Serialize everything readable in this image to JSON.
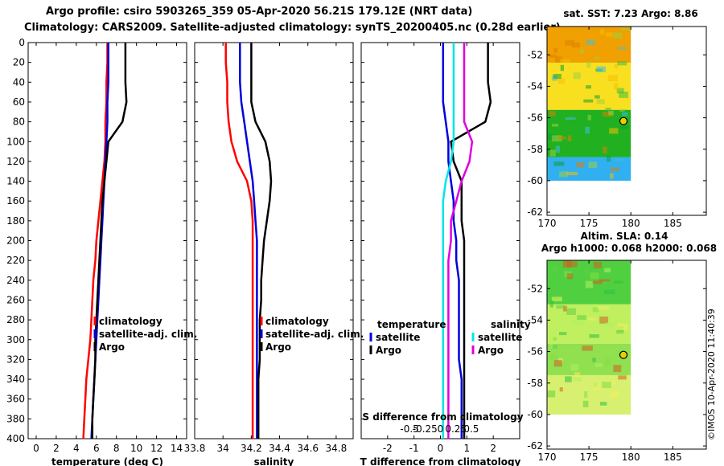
{
  "titles": {
    "line1": "Argo profile: csiro 5903265_359 05-Apr-2020 56.21S 179.12E (NRT data)",
    "line2": "Climatology: CARS2009. Satellite-adjusted climatology: synTS_20200405.nc (0.28d earlier)"
  },
  "credit": "©IMOS 10-Apr-2020 11:40:39",
  "colors": {
    "climatology": "#ff0000",
    "satellite": "#0000dd",
    "argo": "#000000",
    "sat_sal": "#00e5e5",
    "argo_sal": "#e000e0"
  },
  "depth_axis": {
    "ticks": [
      0,
      20,
      40,
      60,
      80,
      100,
      120,
      140,
      160,
      180,
      200,
      220,
      240,
      260,
      280,
      300,
      320,
      340,
      360,
      380,
      400
    ],
    "range": [
      0,
      400
    ]
  },
  "chart_data": [
    {
      "type": "line",
      "id": "temperature",
      "xlabel": "temperature (deg C)",
      "ylabel": "depth",
      "xlim": [
        -0.8,
        15
      ],
      "ylim": [
        0,
        400
      ],
      "xticks": [
        0,
        2,
        4,
        6,
        8,
        10,
        12,
        14
      ],
      "legend": {
        "position": "bottom-right",
        "entries": [
          "climatology",
          "satellite-adj. clim.",
          "Argo"
        ]
      },
      "series": [
        {
          "name": "climatology",
          "color": "red",
          "x": [
            7.1,
            7.1,
            7.0,
            7.0,
            6.9,
            6.9,
            6.8,
            6.6,
            6.4,
            6.2,
            6.0,
            5.9,
            5.7,
            5.6,
            5.5,
            5.4,
            5.2,
            5.0,
            4.9,
            4.8,
            4.7
          ],
          "y": [
            0,
            20,
            40,
            60,
            80,
            100,
            120,
            140,
            160,
            180,
            200,
            220,
            240,
            260,
            280,
            300,
            320,
            340,
            360,
            380,
            400
          ]
        },
        {
          "name": "satellite-adj. clim.",
          "color": "blue",
          "x": [
            7.2,
            7.2,
            7.2,
            7.1,
            7.1,
            7.0,
            6.9,
            6.8,
            6.7,
            6.6,
            6.5,
            6.4,
            6.3,
            6.2,
            6.1,
            6.0,
            5.9,
            5.8,
            5.7,
            5.6,
            5.5
          ],
          "y": [
            0,
            20,
            40,
            60,
            80,
            100,
            120,
            140,
            160,
            180,
            200,
            220,
            240,
            260,
            280,
            300,
            320,
            340,
            360,
            380,
            400
          ]
        },
        {
          "name": "Argo",
          "color": "black",
          "x": [
            8.9,
            8.9,
            8.9,
            9.0,
            8.6,
            7.2,
            7.0,
            6.8,
            6.6,
            6.5,
            6.4,
            6.3,
            6.2,
            6.1,
            6.0,
            5.9,
            5.9,
            5.8,
            5.7,
            5.6,
            5.6
          ],
          "y": [
            0,
            20,
            40,
            60,
            80,
            100,
            120,
            140,
            160,
            180,
            200,
            220,
            240,
            260,
            280,
            300,
            320,
            340,
            360,
            380,
            400
          ]
        }
      ]
    },
    {
      "type": "line",
      "id": "salinity",
      "xlabel": "salinity",
      "ylabel": "depth",
      "xlim": [
        33.8,
        34.92
      ],
      "ylim": [
        0,
        400
      ],
      "xticks": [
        "33.8",
        "34",
        "34.2",
        "34.4",
        "34.6",
        "34.8"
      ],
      "legend": {
        "position": "bottom-right",
        "entries": [
          "climatology",
          "satellite-adj. clim.",
          "Argo"
        ]
      },
      "series": [
        {
          "name": "climatology",
          "color": "red",
          "x": [
            34.02,
            34.02,
            34.03,
            34.03,
            34.04,
            34.06,
            34.1,
            34.17,
            34.2,
            34.21,
            34.21,
            34.21,
            34.21,
            34.21,
            34.21,
            34.21,
            34.21,
            34.21,
            34.21,
            34.21,
            34.21
          ],
          "y": [
            0,
            20,
            40,
            60,
            80,
            100,
            120,
            140,
            160,
            180,
            200,
            220,
            240,
            260,
            280,
            300,
            320,
            340,
            360,
            380,
            400
          ]
        },
        {
          "name": "satellite-adj. clim.",
          "color": "blue",
          "x": [
            34.12,
            34.12,
            34.12,
            34.13,
            34.15,
            34.17,
            34.19,
            34.21,
            34.22,
            34.23,
            34.24,
            34.24,
            34.24,
            34.24,
            34.24,
            34.24,
            34.24,
            34.24,
            34.24,
            34.24,
            34.24
          ],
          "y": [
            0,
            20,
            40,
            60,
            80,
            100,
            120,
            140,
            160,
            180,
            200,
            220,
            240,
            260,
            280,
            300,
            320,
            340,
            360,
            380,
            400
          ]
        },
        {
          "name": "Argo",
          "color": "black",
          "x": [
            34.2,
            34.2,
            34.2,
            34.2,
            34.23,
            34.3,
            34.33,
            34.34,
            34.33,
            34.31,
            34.29,
            34.28,
            34.27,
            34.27,
            34.26,
            34.26,
            34.26,
            34.25,
            34.25,
            34.25,
            34.25
          ],
          "y": [
            0,
            20,
            40,
            60,
            80,
            100,
            120,
            140,
            160,
            180,
            200,
            220,
            240,
            260,
            280,
            300,
            320,
            340,
            360,
            380,
            400
          ]
        }
      ]
    },
    {
      "type": "line",
      "id": "difference",
      "xlabel": "T difference from climatology",
      "top_label": "S difference from climatology",
      "ylim": [
        0,
        400
      ],
      "xlim": [
        -3,
        3
      ],
      "xticks": [
        "-2",
        "-1",
        "0",
        "1",
        "2"
      ],
      "top_xticks_values": [
        -0.5,
        -0.25,
        0,
        0.25,
        0.5
      ],
      "top_xticks": [
        "-0.5",
        "-0.25",
        "0",
        "0.25",
        "0.5"
      ],
      "legend": {
        "temperature_title": "temperature",
        "salinity_title": "salinity",
        "entries": [
          "satellite",
          "Argo",
          "satellite",
          "Argo"
        ]
      },
      "series": [
        {
          "name": "temperature satellite",
          "color": "blue",
          "x": [
            0.1,
            0.1,
            0.1,
            0.1,
            0.2,
            0.3,
            0.3,
            0.4,
            0.5,
            0.5,
            0.6,
            0.6,
            0.7,
            0.7,
            0.7,
            0.7,
            0.7,
            0.8,
            0.8,
            0.8,
            0.8
          ],
          "y": [
            0,
            20,
            40,
            60,
            80,
            100,
            120,
            140,
            160,
            180,
            200,
            220,
            240,
            260,
            280,
            300,
            320,
            340,
            360,
            380,
            400
          ]
        },
        {
          "name": "temperature Argo",
          "color": "black",
          "x": [
            1.8,
            1.8,
            1.8,
            1.9,
            1.7,
            0.4,
            0.5,
            0.8,
            0.8,
            0.8,
            0.9,
            0.9,
            0.9,
            0.9,
            0.9,
            0.9,
            0.9,
            0.9,
            0.9,
            0.9,
            0.9
          ],
          "y": [
            0,
            20,
            40,
            60,
            80,
            100,
            120,
            140,
            160,
            180,
            200,
            220,
            240,
            260,
            280,
            300,
            320,
            340,
            360,
            380,
            400
          ]
        },
        {
          "name": "salinity satellite",
          "color": "cyan",
          "x": [
            0.5,
            0.5,
            0.5,
            0.5,
            0.5,
            0.5,
            0.4,
            0.2,
            0.1,
            0.1,
            0.1,
            0.1,
            0.1,
            0.1,
            0.1,
            0.1,
            0.1,
            0.1,
            0.1,
            0.1,
            0.1
          ],
          "y": [
            0,
            20,
            40,
            60,
            80,
            100,
            120,
            140,
            160,
            180,
            200,
            220,
            240,
            260,
            280,
            300,
            320,
            340,
            360,
            380,
            400
          ]
        },
        {
          "name": "salinity Argo",
          "color": "magenta",
          "x": [
            0.9,
            0.9,
            0.9,
            0.9,
            0.9,
            1.2,
            1.1,
            0.8,
            0.6,
            0.4,
            0.4,
            0.3,
            0.3,
            0.3,
            0.3,
            0.3,
            0.3,
            0.3,
            0.3,
            0.3,
            0.3
          ],
          "y": [
            0,
            20,
            40,
            60,
            80,
            100,
            120,
            140,
            160,
            180,
            200,
            220,
            240,
            260,
            280,
            300,
            320,
            340,
            360,
            380,
            400
          ]
        }
      ]
    },
    {
      "type": "heatmap",
      "id": "sst_map",
      "title": "sat. SST: 7.23 Argo: 8.86",
      "xlim": [
        170,
        189
      ],
      "ylim": [
        -62.2,
        -50.2
      ],
      "xticks": [
        170,
        175,
        180,
        185
      ],
      "yticks": [
        "-52",
        "-54",
        "-56",
        "-58",
        "-60",
        "-62"
      ],
      "data_extent": {
        "lon": [
          170,
          180
        ],
        "lat": [
          -60,
          -50.2
        ]
      },
      "argo_position": {
        "lon": 179.12,
        "lat": -56.21
      },
      "bands": [
        {
          "lat": [
            -50.2,
            -52.5
          ],
          "color": "#f0a000"
        },
        {
          "lat": [
            -52.5,
            -55.5
          ],
          "color": "#f8e020"
        },
        {
          "lat": [
            -55.5,
            -58.5
          ],
          "color": "#20b020"
        },
        {
          "lat": [
            -58.5,
            -60
          ],
          "color": "#30b0f0"
        }
      ]
    },
    {
      "type": "heatmap",
      "id": "sla_map",
      "title": "Altim. SLA: 0.14",
      "subtitle": "Argo h1000: 0.068 h2000: 0.068",
      "xlim": [
        170,
        189
      ],
      "ylim": [
        -62.2,
        -50.2
      ],
      "xticks": [
        170,
        175,
        180,
        185
      ],
      "yticks": [
        "-52",
        "-54",
        "-56",
        "-58",
        "-60",
        "-62"
      ],
      "data_extent": {
        "lon": [
          170,
          180
        ],
        "lat": [
          -60,
          -50.2
        ]
      },
      "argo_position": {
        "lon": 179.12,
        "lat": -56.21
      },
      "bands": [
        {
          "lat": [
            -50.2,
            -53
          ],
          "color": "#50d040"
        },
        {
          "lat": [
            -53,
            -55.5
          ],
          "color": "#c0f060"
        },
        {
          "lat": [
            -55.5,
            -57.5
          ],
          "color": "#90e050"
        },
        {
          "lat": [
            -57.5,
            -60
          ],
          "color": "#d8f070"
        }
      ]
    }
  ]
}
